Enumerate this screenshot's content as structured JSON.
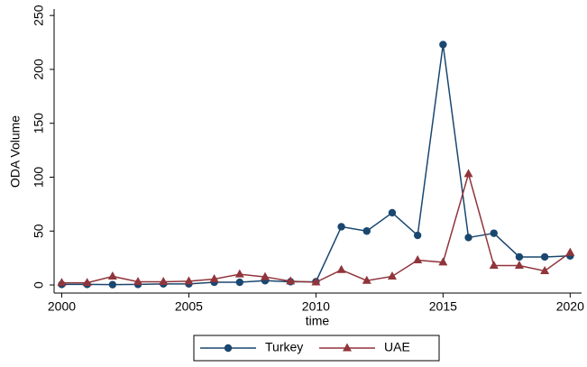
{
  "chart_data": {
    "type": "line",
    "xlabel": "time",
    "ylabel": "ODA Volume",
    "x": [
      2000,
      2001,
      2002,
      2003,
      2004,
      2005,
      2006,
      2007,
      2008,
      2009,
      2010,
      2011,
      2012,
      2013,
      2014,
      2015,
      2016,
      2017,
      2018,
      2019,
      2020
    ],
    "series": [
      {
        "name": "Turkey",
        "color": "#1a476f",
        "marker": "circle",
        "values": [
          0.5,
          0.5,
          0.3,
          0.5,
          1,
          1,
          2.5,
          2.5,
          4,
          3,
          3,
          54,
          50,
          67,
          46,
          223,
          44,
          48,
          26,
          26,
          27
        ]
      },
      {
        "name": "UAE",
        "color": "#90353b",
        "marker": "triangle",
        "values": [
          2,
          2,
          8,
          3,
          3,
          3.5,
          5.5,
          10,
          7.5,
          3.5,
          2.5,
          14,
          4,
          8,
          23,
          21,
          103,
          18,
          18,
          13,
          30
        ]
      }
    ],
    "xlim": [
      1999.7,
      2020.45
    ],
    "xticks": [
      2000,
      2005,
      2010,
      2015,
      2020
    ],
    "ylim": [
      -7.5,
      256
    ],
    "yticks": [
      0,
      50,
      100,
      150,
      200,
      250
    ],
    "grid": false,
    "legend": "bottom"
  }
}
